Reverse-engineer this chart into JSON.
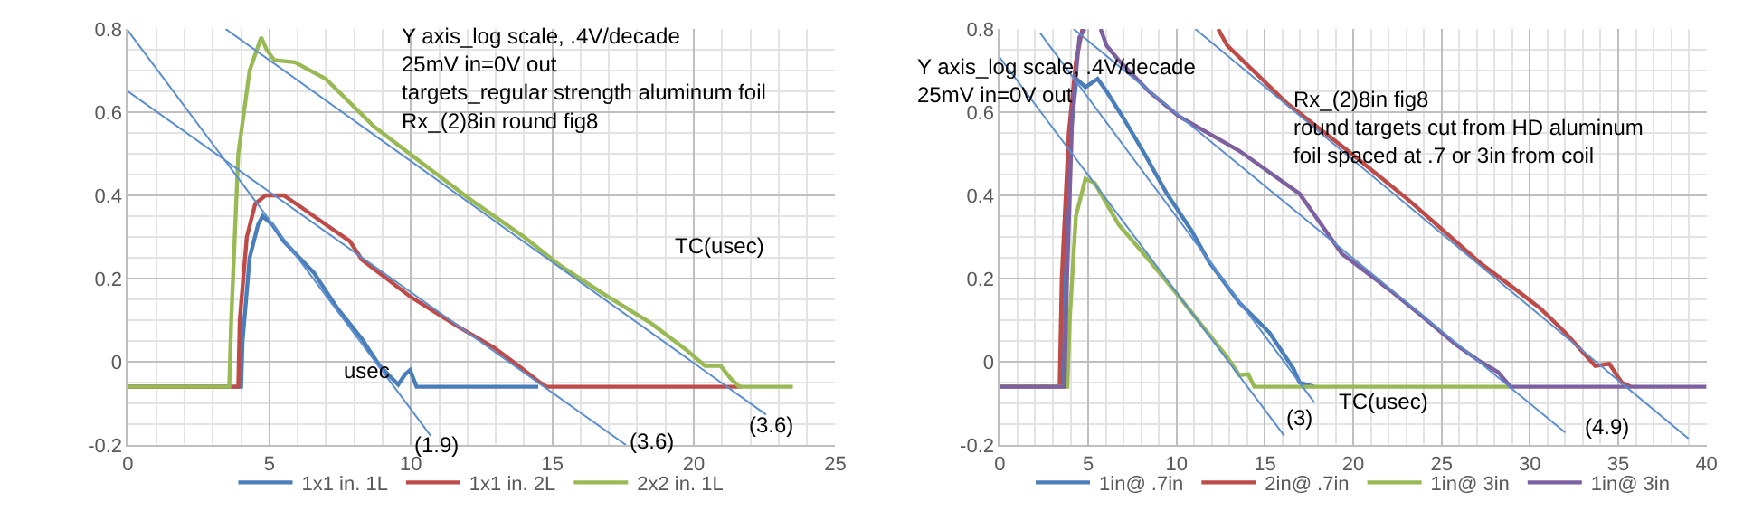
{
  "chart_data": [
    {
      "type": "line",
      "xlabel": "usec",
      "xlim": [
        0,
        25
      ],
      "ylim": [
        -0.2,
        0.8
      ],
      "xticks": [
        0,
        5,
        10,
        15,
        20,
        25
      ],
      "yticks": [
        -0.2,
        0,
        0.2,
        0.4,
        0.6,
        0.8
      ],
      "grid": true,
      "legend": "bottom",
      "marker": "none",
      "line_style": "solid",
      "annotations": [
        "Y axis_log scale, .4V/decade\n25mV in=0V out\ntargets_regular strength aluminum foil\nRx_(2)8in round fig8",
        "TC(usec)",
        "(1.9)",
        "(3.6)",
        "(3.6)"
      ],
      "series": [
        {
          "name": "1x1 in. 1L",
          "color": "#4a7ebb",
          "x": [
            0,
            4.0,
            4.05,
            4.3,
            4.6,
            4.76,
            5.1,
            5.5,
            5.92,
            6.56,
            7.41,
            8.27,
            8.9,
            9.55,
            9.8,
            9.97,
            10.2,
            14.5
          ],
          "values": [
            -0.06,
            -0.06,
            0.05,
            0.25,
            0.33,
            0.35,
            0.33,
            0.29,
            0.26,
            0.215,
            0.128,
            0.055,
            -0.01,
            -0.055,
            -0.03,
            -0.02,
            -0.06,
            -0.06
          ]
        },
        {
          "name": "1x1 in. 2L",
          "color": "#be4b48",
          "x": [
            0,
            3.9,
            3.95,
            4.2,
            4.5,
            4.86,
            5.5,
            6.15,
            6.99,
            7.84,
            8.27,
            9.97,
            11.68,
            12.96,
            13.8,
            14.56,
            14.8,
            21.7
          ],
          "values": [
            -0.06,
            -0.06,
            0.1,
            0.3,
            0.38,
            0.4,
            0.4,
            0.37,
            0.33,
            0.29,
            0.245,
            0.157,
            0.084,
            0.033,
            -0.01,
            -0.05,
            -0.06,
            -0.06
          ]
        },
        {
          "name": "2x2 in. 1L",
          "color": "#98b954",
          "x": [
            0,
            3.58,
            3.65,
            3.9,
            4.3,
            4.71,
            4.9,
            5.17,
            5.9,
            6.99,
            8.7,
            10.4,
            12.1,
            14,
            15.3,
            16.79,
            18.5,
            19.78,
            20.4,
            20.95,
            21.3,
            21.6,
            23.5
          ],
          "values": [
            -0.06,
            -0.06,
            0.1,
            0.5,
            0.7,
            0.78,
            0.75,
            0.725,
            0.72,
            0.68,
            0.565,
            0.477,
            0.39,
            0.3,
            0.23,
            0.164,
            0.092,
            0.026,
            -0.01,
            -0.01,
            -0.04,
            -0.06,
            -0.06
          ]
        },
        {
          "type": "line",
          "color": "#5b8ed0",
          "x": [
            3.45,
            22.55
          ],
          "values": [
            0.8,
            -0.127
          ]
        },
        {
          "type": "line",
          "color": "#5b8ed0",
          "x": [
            0,
            17.6
          ],
          "values": [
            0.65,
            -0.2
          ]
        },
        {
          "type": "line",
          "color": "#5b8ed0",
          "x": [
            0,
            10.7
          ],
          "values": [
            0.796,
            -0.178
          ]
        }
      ]
    },
    {
      "type": "line",
      "xlabel": "TC(usec)",
      "xlim": [
        0,
        40
      ],
      "ylim": [
        -0.2,
        0.8
      ],
      "xticks": [
        0,
        5,
        10,
        15,
        20,
        25,
        30,
        35,
        40
      ],
      "yticks": [
        -0.2,
        0,
        0.2,
        0.4,
        0.6,
        0.8
      ],
      "grid": true,
      "legend": "bottom",
      "marker": "none",
      "line_style": "solid",
      "annotations": [
        "Y axis_log scale, .4V/decade\n25mV in=0V out",
        "Rx_(2)8in fig8\nround targets cut from HD aluminum\nfoil spaced at .7 or 3in from coil",
        "(3)",
        "(4.9)"
      ],
      "series": [
        {
          "name": "1in@ .7in",
          "color": "#4a7ebb",
          "x": [
            0,
            3.48,
            3.6,
            3.9,
            4.33,
            4.84,
            5.53,
            6.04,
            7.07,
            8.09,
            9.45,
            10.82,
            11.84,
            13.55,
            15.26,
            16.62,
            16.96,
            17.8
          ],
          "values": [
            -0.06,
            -0.06,
            0.1,
            0.5,
            0.68,
            0.66,
            0.68,
            0.65,
            0.58,
            0.507,
            0.404,
            0.317,
            0.24,
            0.142,
            0.07,
            -0.017,
            -0.05,
            -0.06
          ]
        },
        {
          "name": "2in@ .7in",
          "color": "#be4b48",
          "x": [
            0,
            3.38,
            3.5,
            3.9,
            4.3,
            4.67,
            8,
            12.35,
            12.87,
            16.28,
            19.7,
            23.1,
            27.2,
            29.25,
            30.6,
            32.0,
            33.7,
            34.5,
            35.2,
            35.7
          ],
          "values": [
            -0.06,
            -0.06,
            0.2,
            0.55,
            0.72,
            0.8,
            null,
            0.8,
            0.76,
            0.62,
            0.507,
            0.39,
            0.237,
            0.172,
            0.128,
            0.07,
            -0.01,
            -0.005,
            -0.05,
            -0.06
          ]
        },
        {
          "name": "1in@ 3in",
          "color": "#98b954",
          "x": [
            0,
            3.82,
            3.95,
            4.3,
            4.84,
            5.36,
            6.72,
            8.43,
            10.14,
            11.5,
            12.87,
            13.55,
            14.06,
            14.4,
            28.9
          ],
          "values": [
            -0.06,
            -0.06,
            0.1,
            0.35,
            0.44,
            0.43,
            0.33,
            0.245,
            0.157,
            0.084,
            0.011,
            -0.032,
            -0.03,
            -0.06,
            -0.06
          ]
        },
        {
          "name": "1in@ 3in",
          "color": "#7d60a0",
          "x": [
            0,
            3.65,
            3.8,
            4.1,
            4.5,
            4.8,
            5.2,
            5.7,
            6.04,
            6.72,
            8.43,
            10.14,
            13.55,
            16.96,
            19.35,
            22.08,
            23.8,
            25.84,
            27.2,
            28.2,
            28.9,
            40
          ],
          "values": [
            -0.06,
            -0.06,
            0.2,
            0.6,
            0.78,
            0.8,
            null,
            0.8,
            0.76,
            0.725,
            0.65,
            0.59,
            0.507,
            0.404,
            0.26,
            0.172,
            0.113,
            0.04,
            0.0,
            -0.025,
            -0.06,
            -0.06
          ]
        },
        {
          "type": "line",
          "color": "#5b8ed0",
          "x": [
            11.06,
            38.98
          ],
          "values": [
            0.8,
            -0.185
          ]
        },
        {
          "type": "line",
          "color": "#5b8ed0",
          "x": [
            4.17,
            32.0
          ],
          "values": [
            0.8,
            -0.17
          ]
        },
        {
          "type": "line",
          "color": "#5b8ed0",
          "x": [
            2.28,
            17.8
          ],
          "values": [
            0.79,
            -0.098
          ]
        },
        {
          "type": "line",
          "color": "#5b8ed0",
          "x": [
            0,
            16.1
          ],
          "values": [
            0.731,
            -0.178
          ]
        }
      ]
    }
  ]
}
